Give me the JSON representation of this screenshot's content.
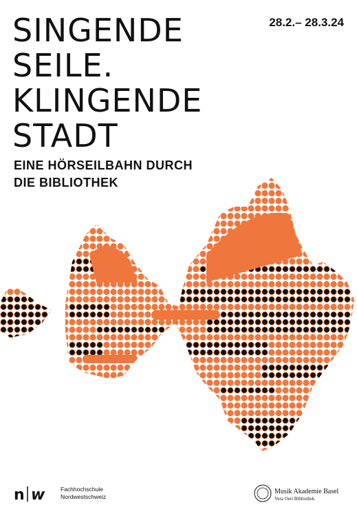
{
  "poster": {
    "title_lines": [
      "SINGENDE",
      "SEILE.",
      "KLINGENDE",
      "STADT"
    ],
    "date": "28.2.– 28.3.24",
    "subtitle_lines": [
      "EINE HÖRSEILBAHN DURCH",
      "DIE BIBLIOTHEK"
    ]
  },
  "footer": {
    "left_logo": {
      "mark_left": "n",
      "mark_right": "w",
      "lines": [
        "Fachhochschule",
        "Nordwestschweiz"
      ]
    },
    "right_logo": {
      "lines": [
        "Musik Akademie Basel",
        "Vera Oeri Bibliothek"
      ]
    }
  }
}
